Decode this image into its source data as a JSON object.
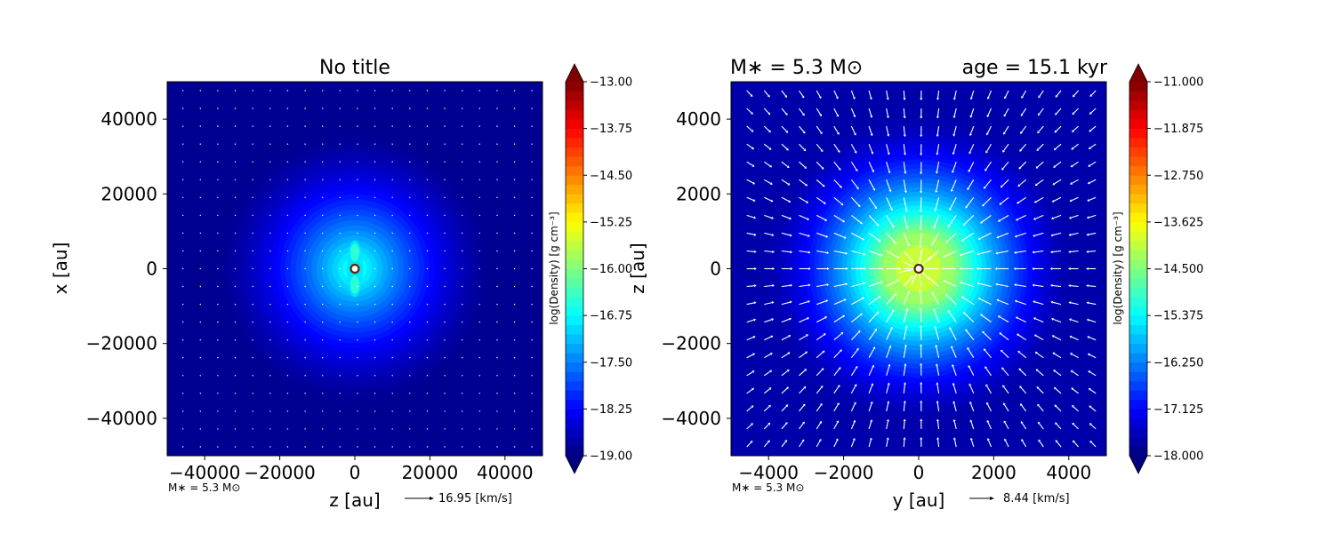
{
  "chart_data": [
    {
      "type": "heatmap",
      "title": "No title",
      "title_left": "",
      "title_right": "",
      "xlabel": "z [au]",
      "ylabel": "x [au]",
      "xlim": [
        -50000,
        50000
      ],
      "ylim": [
        -50000,
        50000
      ],
      "xticks": [
        -40000,
        -20000,
        0,
        20000,
        40000
      ],
      "yticks": [
        -40000,
        -20000,
        0,
        20000,
        40000
      ],
      "xtick_labels": [
        "−40000",
        "−20000",
        "0",
        "20000",
        "40000"
      ],
      "ytick_labels": [
        "−40000",
        "−20000",
        "0",
        "20000",
        "40000"
      ],
      "colorbar": {
        "label": "log(Density) [g cm⁻³]",
        "min": -19.0,
        "max": -13.0,
        "ticks": [
          -19.0,
          -18.25,
          -17.5,
          -16.75,
          -16.0,
          -15.25,
          -14.5,
          -13.75,
          -13.0
        ],
        "tick_labels": [
          "−19.00",
          "−18.25",
          "−17.50",
          "−16.75",
          "−16.00",
          "−15.25",
          "−14.50",
          "−13.75",
          "−13.00"
        ]
      },
      "density_peak": -16.6,
      "background": -18.9,
      "star_annotation": "M∗ = 5.3 M⊙",
      "quiver_key": "16.95 [km/s]"
    },
    {
      "type": "heatmap",
      "title": "",
      "title_left": "M∗ = 5.3 M⊙",
      "title_right": "age = 15.1 kyr",
      "xlabel": "y [au]",
      "ylabel": "z [au]",
      "xlim": [
        -5000,
        5000
      ],
      "ylim": [
        -5000,
        5000
      ],
      "xticks": [
        -4000,
        -2000,
        0,
        2000,
        4000
      ],
      "yticks": [
        -4000,
        -2000,
        0,
        2000,
        4000
      ],
      "xtick_labels": [
        "−4000",
        "−2000",
        "0",
        "2000",
        "4000"
      ],
      "ytick_labels": [
        "−4000",
        "−2000",
        "0",
        "2000",
        "4000"
      ],
      "colorbar": {
        "label": "log(Density) [g cm⁻³]",
        "min": -18.0,
        "max": -11.0,
        "ticks": [
          -18.0,
          -17.125,
          -16.25,
          -15.375,
          -14.5,
          -13.625,
          -12.75,
          -11.875,
          -11.0
        ],
        "tick_labels": [
          "−18.000",
          "−17.125",
          "−16.250",
          "−15.375",
          "−14.500",
          "−13.625",
          "−12.750",
          "−11.875",
          "−11.000"
        ]
      },
      "density_peak": -14.3,
      "background": -17.7,
      "star_annotation": "M∗ = 5.3 M⊙",
      "quiver_key": "8.44 [km/s]"
    }
  ]
}
